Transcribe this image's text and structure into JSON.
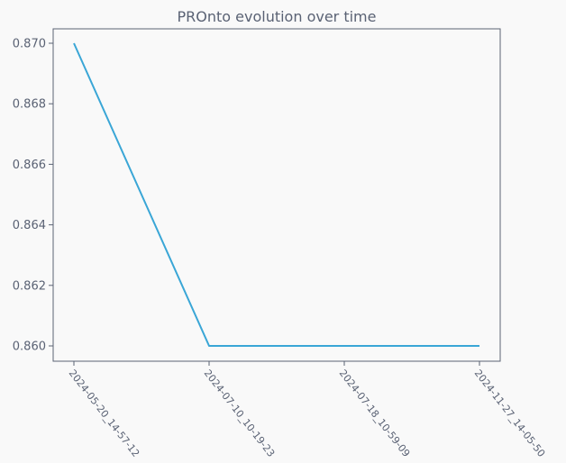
{
  "chart_data": {
    "type": "line",
    "title": "PROnto evolution over time",
    "xlabel": "",
    "ylabel": "",
    "categories": [
      "2024-05-20_14-57-12",
      "2024-07-10_10-19-23",
      "2024-07-18_10-59-09",
      "2024-11-27_14-05-50"
    ],
    "series": [
      {
        "values": [
          0.87,
          0.86,
          0.86,
          0.86
        ],
        "color": "#3aa6d6"
      }
    ],
    "ylim": [
      0.8595,
      0.8705
    ],
    "yticks": [
      "0.860",
      "0.862",
      "0.864",
      "0.866",
      "0.868",
      "0.870"
    ],
    "grid": false,
    "legend": "none",
    "colors": {
      "background": "#f9f9f9",
      "axes": "#5a6274",
      "text": "#5a6274",
      "line": "#3aa6d6"
    }
  }
}
